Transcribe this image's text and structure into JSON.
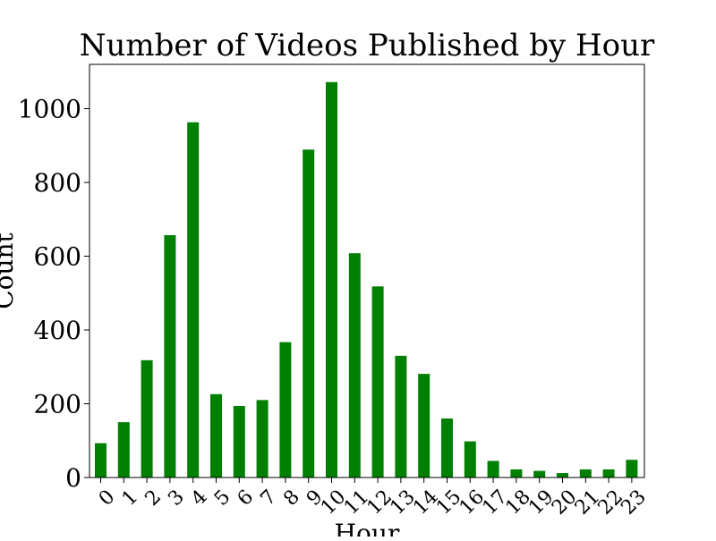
{
  "chart_data": {
    "type": "bar",
    "title": "Number of Videos Published by Hour",
    "xlabel": "Hour",
    "ylabel": "Count",
    "categories": [
      "0",
      "1",
      "2",
      "3",
      "4",
      "5",
      "6",
      "7",
      "8",
      "9",
      "10",
      "11",
      "12",
      "13",
      "14",
      "15",
      "16",
      "17",
      "18",
      "19",
      "20",
      "21",
      "22",
      "23"
    ],
    "values": [
      93,
      150,
      318,
      657,
      963,
      226,
      194,
      210,
      367,
      889,
      1072,
      608,
      518,
      330,
      281,
      160,
      98,
      45,
      22,
      18,
      12,
      22,
      22,
      48
    ],
    "ylim": [
      0,
      1120
    ],
    "yticks": [
      0,
      200,
      400,
      600,
      800,
      1000
    ],
    "bar_color": "#008000",
    "grid": false,
    "legend": "none"
  }
}
